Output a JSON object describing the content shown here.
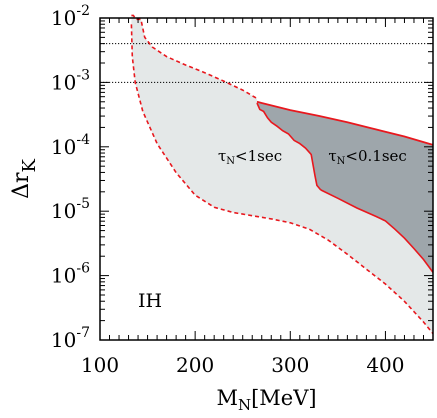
{
  "chart_data": {
    "type": "area",
    "xlabel_main": "M",
    "xlabel_sub": "N",
    "xlabel_unit": "[MeV]",
    "ylabel_main": "Δr",
    "ylabel_sub": "K",
    "xlim": [
      100,
      450
    ],
    "ylim_exp": [
      -7,
      -2
    ],
    "yscale": "log",
    "x_ticks": [
      100,
      200,
      300,
      400
    ],
    "y_ticks": [
      {
        "base": "10",
        "exp": "-2",
        "e": -2
      },
      {
        "base": "10",
        "exp": "-3",
        "e": -3
      },
      {
        "base": "10",
        "exp": "-4",
        "e": -4
      },
      {
        "base": "10",
        "exp": "-5",
        "e": -5
      },
      {
        "base": "10",
        "exp": "-6",
        "e": -6
      },
      {
        "base": "10",
        "exp": "-7",
        "e": -7
      }
    ],
    "hlines": [
      0.004,
      0.001
    ],
    "hierarchy_label": "IH",
    "colors": {
      "light_region": "#e4e8e8",
      "dark_region": "#9ea6ab",
      "boundary": "#e8181e",
      "hline": "#000000"
    },
    "regions": [
      {
        "name": "τ_N<1sec",
        "label_main": "τ",
        "label_sub": "N",
        "label_rest": "<1sec",
        "label_at": [
          224,
          -4.22
        ],
        "upper_boundary": [
          [
            133,
            -1.96
          ],
          [
            135,
            -1.96
          ],
          [
            138,
            -2.02
          ],
          [
            143,
            -2.02
          ],
          [
            147,
            -2.3
          ],
          [
            155,
            -2.45
          ],
          [
            170,
            -2.6
          ],
          [
            190,
            -2.73
          ],
          [
            210,
            -2.85
          ],
          [
            230,
            -2.98
          ],
          [
            250,
            -3.12
          ],
          [
            265,
            -3.25
          ]
        ],
        "lower_boundary": [
          [
            133,
            -2.1
          ],
          [
            134,
            -2.6
          ],
          [
            137,
            -3.0
          ],
          [
            145,
            -3.45
          ],
          [
            160,
            -3.95
          ],
          [
            180,
            -4.4
          ],
          [
            200,
            -4.75
          ],
          [
            220,
            -4.94
          ],
          [
            240,
            -5.02
          ],
          [
            260,
            -5.07
          ],
          [
            280,
            -5.12
          ],
          [
            300,
            -5.18
          ],
          [
            320,
            -5.28
          ],
          [
            340,
            -5.45
          ],
          [
            360,
            -5.67
          ],
          [
            380,
            -5.9
          ],
          [
            400,
            -6.13
          ],
          [
            420,
            -6.4
          ],
          [
            440,
            -6.72
          ],
          [
            450,
            -6.9
          ]
        ]
      },
      {
        "name": "τ_N<0.1sec",
        "label_main": "τ",
        "label_sub": "N",
        "label_rest": "<0.1sec",
        "label_at": [
          340,
          -4.22
        ],
        "upper_boundary": [
          [
            265,
            -3.3
          ],
          [
            270,
            -3.32
          ],
          [
            300,
            -3.43
          ],
          [
            330,
            -3.52
          ],
          [
            360,
            -3.62
          ],
          [
            390,
            -3.73
          ],
          [
            420,
            -3.84
          ],
          [
            450,
            -3.97
          ]
        ],
        "left_boundary": [
          [
            265,
            -3.32
          ],
          [
            268,
            -3.42
          ],
          [
            272,
            -3.45
          ],
          [
            276,
            -3.55
          ],
          [
            280,
            -3.62
          ],
          [
            286,
            -3.68
          ],
          [
            292,
            -3.75
          ],
          [
            298,
            -3.8
          ],
          [
            304,
            -3.9
          ],
          [
            310,
            -3.95
          ],
          [
            316,
            -4.02
          ],
          [
            322,
            -4.12
          ],
          [
            326,
            -4.45
          ],
          [
            328,
            -4.6
          ],
          [
            332,
            -4.67
          ]
        ],
        "lower_boundary": [
          [
            332,
            -4.67
          ],
          [
            350,
            -4.8
          ],
          [
            370,
            -4.95
          ],
          [
            390,
            -5.08
          ],
          [
            400,
            -5.15
          ],
          [
            410,
            -5.28
          ],
          [
            420,
            -5.42
          ],
          [
            430,
            -5.58
          ],
          [
            440,
            -5.75
          ],
          [
            450,
            -5.95
          ]
        ]
      }
    ]
  }
}
